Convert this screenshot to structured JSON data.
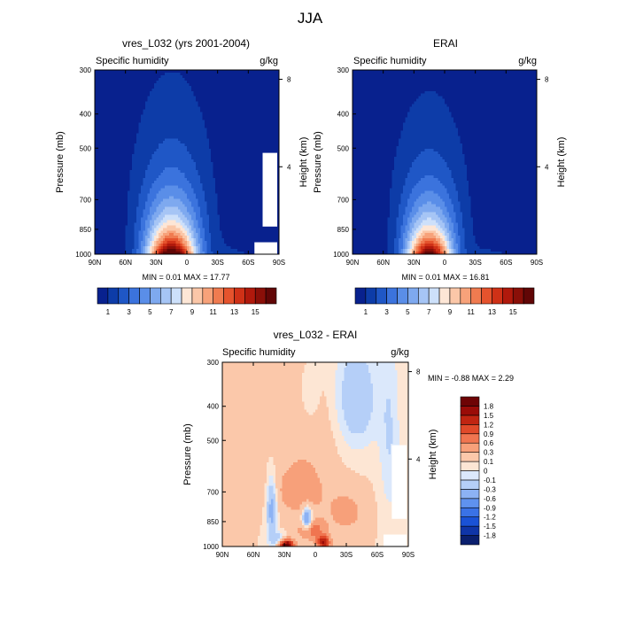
{
  "figure_title": "JJA",
  "chart_data": [
    {
      "type": "heatmap",
      "title": "vres_L032 (yrs 2001-2004)",
      "subtitle_left": "Specific humidity",
      "subtitle_right": "g/kg",
      "ylabel": "Pressure (mb)",
      "ylabel_right": "Height (km)",
      "xticks": [
        "90N",
        "60N",
        "30N",
        "0",
        "30S",
        "60S",
        "90S"
      ],
      "xlim": [
        90,
        -90
      ],
      "yticks": [
        "300",
        "400",
        "500",
        "700",
        "850",
        "1000"
      ],
      "ytick_values": [
        300,
        400,
        500,
        700,
        850,
        1000
      ],
      "ylim": [
        300,
        1000
      ],
      "yscale": "log",
      "height_ticks": [
        "8",
        "4"
      ],
      "height_tick_values": [
        8,
        4
      ],
      "stats": "MIN =   0.01   MAX =  17.77",
      "min": 0.01,
      "max": 17.77,
      "field": {
        "peak_lat": 15,
        "peak_value": 17.77,
        "surface_spread_deg": 24,
        "boundary_layer_hpa": 240,
        "antarctic_topography": true
      },
      "colorbar": {
        "orientation": "horizontal",
        "levels": [
          1,
          2,
          3,
          4,
          5,
          6,
          7,
          8,
          9,
          10,
          11,
          12,
          13,
          14,
          15,
          16
        ],
        "labels": [
          "1",
          "3",
          "5",
          "7",
          "9",
          "11",
          "13",
          "15"
        ],
        "colors": [
          "#08218e",
          "#0d3ca8",
          "#1f57c6",
          "#3b73dd",
          "#5a8ee8",
          "#7ea9ef",
          "#a6c5f5",
          "#cde0fa",
          "#fde6d6",
          "#fbc7a8",
          "#f7a27a",
          "#f07b50",
          "#e5532d",
          "#cf3117",
          "#b0190c",
          "#8a0f08",
          "#610606"
        ]
      }
    },
    {
      "type": "heatmap",
      "title": "ERAI",
      "subtitle_left": "Specific humidity",
      "subtitle_right": "g/kg",
      "ylabel": "Pressure (mb)",
      "ylabel_right": "Height (km)",
      "xticks": [
        "90N",
        "60N",
        "30N",
        "0",
        "30S",
        "60S",
        "90S"
      ],
      "xlim": [
        90,
        -90
      ],
      "yticks": [
        "300",
        "400",
        "500",
        "700",
        "850",
        "1000"
      ],
      "ytick_values": [
        300,
        400,
        500,
        700,
        850,
        1000
      ],
      "ylim": [
        300,
        1000
      ],
      "yscale": "log",
      "height_ticks": [
        "8",
        "4"
      ],
      "height_tick_values": [
        8,
        4
      ],
      "stats": "MIN =   0.01   MAX =  16.81",
      "min": 0.01,
      "max": 16.81,
      "field": {
        "peak_lat": 15,
        "peak_value": 16.81,
        "surface_spread_deg": 22,
        "boundary_layer_hpa": 230,
        "antarctic_topography": false
      },
      "colorbar": {
        "orientation": "horizontal",
        "levels": [
          1,
          2,
          3,
          4,
          5,
          6,
          7,
          8,
          9,
          10,
          11,
          12,
          13,
          14,
          15,
          16
        ],
        "labels": [
          "1",
          "3",
          "5",
          "7",
          "9",
          "11",
          "13",
          "15"
        ],
        "colors": [
          "#08218e",
          "#0d3ca8",
          "#1f57c6",
          "#3b73dd",
          "#5a8ee8",
          "#7ea9ef",
          "#a6c5f5",
          "#cde0fa",
          "#fde6d6",
          "#fbc7a8",
          "#f7a27a",
          "#f07b50",
          "#e5532d",
          "#cf3117",
          "#b0190c",
          "#8a0f08",
          "#610606"
        ]
      }
    },
    {
      "type": "heatmap",
      "title": "vres_L032 - ERAI",
      "subtitle_left": "Specific humidity",
      "subtitle_right": "g/kg",
      "ylabel": "Pressure (mb)",
      "ylabel_right": "Height (km)",
      "xticks": [
        "90N",
        "60N",
        "30N",
        "0",
        "30S",
        "60S",
        "90S"
      ],
      "xlim": [
        90,
        -90
      ],
      "yticks": [
        "300",
        "400",
        "500",
        "700",
        "850",
        "1000"
      ],
      "ytick_values": [
        300,
        400,
        500,
        700,
        850,
        1000
      ],
      "ylim": [
        300,
        1000
      ],
      "yscale": "log",
      "height_ticks": [
        "8",
        "4"
      ],
      "height_tick_values": [
        8,
        4
      ],
      "stats": "MIN = -0.88  MAX =   2.29",
      "min": -0.88,
      "max": 2.29,
      "field": {
        "antarctic_topography": true
      },
      "colorbar": {
        "orientation": "vertical",
        "levels": [
          -1.8,
          -1.5,
          -1.2,
          -0.9,
          -0.6,
          -0.3,
          -0.1,
          0,
          0.1,
          0.3,
          0.6,
          0.9,
          1.2,
          1.5,
          1.8
        ],
        "labels": [
          "1.8",
          "1.5",
          "1.2",
          "0.9",
          "0.6",
          "0.3",
          "0.1",
          "0",
          "-0.1",
          "-0.3",
          "-0.6",
          "-0.9",
          "-1.2",
          "-1.5",
          "-1.8"
        ],
        "colors": [
          "#0a1f6e",
          "#0f35a8",
          "#1a52d6",
          "#3a72e6",
          "#5f92ef",
          "#8cb2f4",
          "#b5cff8",
          "#dbe8fb",
          "#fde6d4",
          "#fbc8aa",
          "#f7a07a",
          "#f07550",
          "#e04a2a",
          "#c02512",
          "#9a0c08",
          "#6e0405"
        ]
      }
    }
  ]
}
